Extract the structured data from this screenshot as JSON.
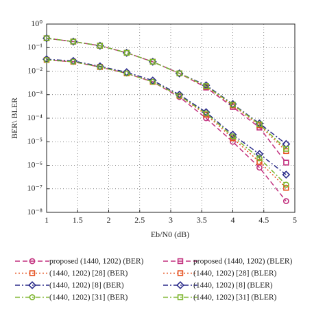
{
  "chart_data": {
    "type": "line",
    "x_label": "Eb/N0 (dB)",
    "y_label": "BER\\ BLER",
    "x": [
      1,
      1.43,
      1.86,
      2.29,
      2.71,
      3.14,
      3.57,
      4.0,
      4.43,
      4.86
    ],
    "xlim": [
      1,
      5
    ],
    "xticks": [
      1,
      1.5,
      2,
      2.5,
      3,
      3.5,
      4,
      4.5,
      5
    ],
    "ylim": [
      1e-08,
      1
    ],
    "log_y": true,
    "grid": true,
    "yticks": [
      {
        "value": 1,
        "label": "10⁰"
      },
      {
        "value": 0.1,
        "label": "10⁻¹"
      },
      {
        "value": 0.01,
        "label": "10⁻²"
      },
      {
        "value": 0.001,
        "label": "10⁻³"
      },
      {
        "value": 0.0001,
        "label": "10⁻⁴"
      },
      {
        "value": 1e-05,
        "label": "10⁻⁵"
      },
      {
        "value": 1e-06,
        "label": "10⁻⁶"
      },
      {
        "value": 1e-07,
        "label": "10⁻⁷"
      },
      {
        "value": 1e-08,
        "label": "10⁻⁸"
      }
    ],
    "series": [
      {
        "name": "proposed (1440, 1202) (BER)",
        "color": "#c2307e",
        "marker": "circle",
        "dash": "7,4",
        "values": [
          0.03,
          0.025,
          0.015,
          0.008,
          0.0035,
          0.0008,
          0.0001,
          1e-05,
          8e-07,
          3e-08
        ]
      },
      {
        "name": "(1440, 1202) [28] (BER)",
        "color": "#e5501f",
        "marker": "square",
        "dash": "2,3",
        "values": [
          0.03,
          0.025,
          0.015,
          0.008,
          0.0035,
          0.0009,
          0.00014,
          1.4e-05,
          1.4e-06,
          1.1e-07
        ]
      },
      {
        "name": "(1440, 1202) [8] (BER)",
        "color": "#2b2c8a",
        "marker": "diamond",
        "dash": "7,3,2,3",
        "values": [
          0.032,
          0.027,
          0.016,
          0.009,
          0.004,
          0.001,
          0.00018,
          2e-05,
          3e-06,
          4e-07
        ]
      },
      {
        "name": "(1440, 1202) [31] (BER)",
        "color": "#7cb52c",
        "marker": "circle",
        "dash": "7,3,2,3",
        "values": [
          0.03,
          0.025,
          0.015,
          0.008,
          0.0035,
          0.0009,
          0.00016,
          1.7e-05,
          2e-06,
          1.5e-07
        ]
      },
      {
        "name": "proposed (1440, 1202) (BLER)",
        "color": "#c2307e",
        "marker": "square",
        "dash": "7,4",
        "values": [
          0.25,
          0.18,
          0.12,
          0.06,
          0.025,
          0.008,
          0.002,
          0.0003,
          4e-05,
          1.3e-06
        ]
      },
      {
        "name": "(1440, 1202) [28] (BLER)",
        "color": "#e5501f",
        "marker": "square",
        "dash": "2,3",
        "values": [
          0.25,
          0.18,
          0.12,
          0.06,
          0.025,
          0.008,
          0.0022,
          0.00035,
          5e-05,
          4e-06
        ]
      },
      {
        "name": "(1440, 1202) [8] (BLER)",
        "color": "#2b2c8a",
        "marker": "diamond",
        "dash": "7,3,2,3",
        "values": [
          0.25,
          0.18,
          0.12,
          0.06,
          0.025,
          0.008,
          0.0025,
          0.0004,
          6e-05,
          8e-06
        ]
      },
      {
        "name": "(1440, 1202) [31] (BLER)",
        "color": "#7cb52c",
        "marker": "square",
        "dash": "7,3,2,3",
        "values": [
          0.25,
          0.18,
          0.12,
          0.06,
          0.025,
          0.008,
          0.0023,
          0.00038,
          5.5e-05,
          5e-06
        ]
      }
    ]
  }
}
